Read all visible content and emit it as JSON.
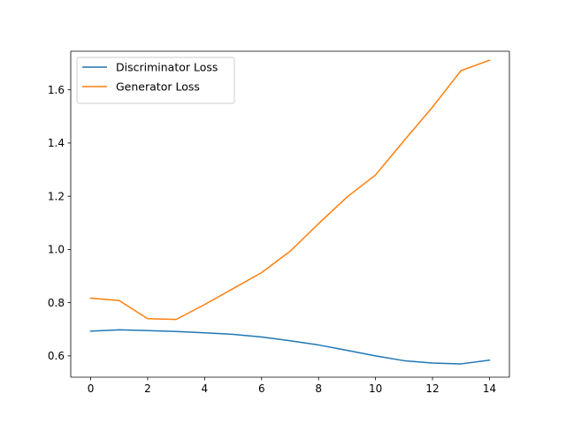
{
  "chart_data": {
    "type": "line",
    "title": "",
    "xlabel": "",
    "ylabel": "",
    "xlim": [
      -0.7,
      14.7
    ],
    "ylim": [
      0.52,
      1.745
    ],
    "xticks": [
      0,
      2,
      4,
      6,
      8,
      10,
      12,
      14
    ],
    "yticks": [
      0.6,
      0.8,
      1.0,
      1.2,
      1.4,
      1.6
    ],
    "grid": false,
    "legend_position": "top-left",
    "x": [
      0,
      1,
      2,
      3,
      4,
      5,
      6,
      7,
      8,
      9,
      10,
      11,
      12,
      13,
      14
    ],
    "series": [
      {
        "name": "Discriminator Loss",
        "color": "#1f77b4",
        "values": [
          0.693,
          0.698,
          0.695,
          0.692,
          0.687,
          0.681,
          0.671,
          0.657,
          0.641,
          0.621,
          0.6,
          0.582,
          0.573,
          0.57,
          0.584
        ]
      },
      {
        "name": "Generator Loss",
        "color": "#ff7f0e",
        "values": [
          0.817,
          0.808,
          0.74,
          0.737,
          0.793,
          0.853,
          0.913,
          0.993,
          1.097,
          1.197,
          1.28,
          1.409,
          1.535,
          1.672,
          1.711
        ]
      }
    ]
  }
}
